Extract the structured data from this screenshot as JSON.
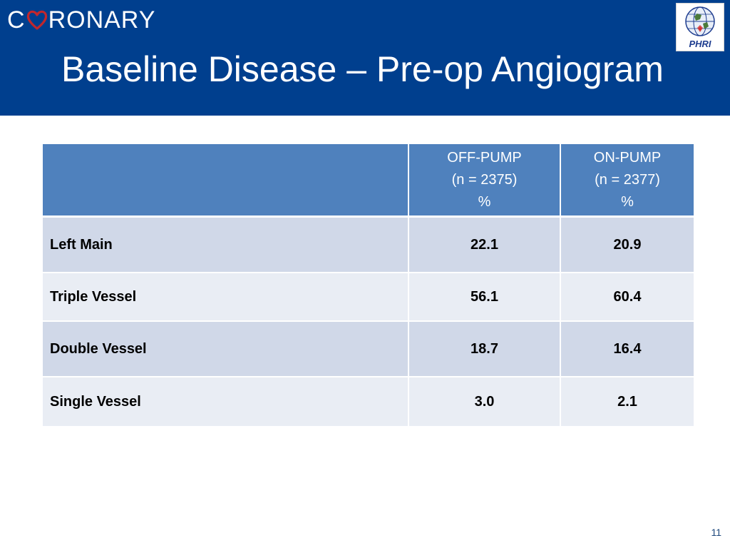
{
  "header": {
    "brand_left": "C",
    "brand_right": "RONARY",
    "title": "Baseline Disease – Pre-op Angiogram",
    "logo_text": "PHRI"
  },
  "table": {
    "columns": [
      {
        "label": ""
      },
      {
        "line1": "OFF-PUMP",
        "line2": "(n = 2375)",
        "line3": "%"
      },
      {
        "line1": "ON-PUMP",
        "line2": "(n = 2377)",
        "line3": "%"
      }
    ],
    "rows": [
      {
        "label": "Left Main",
        "off_pump": "22.1",
        "on_pump": "20.9"
      },
      {
        "label": "Triple Vessel",
        "off_pump": "56.1",
        "on_pump": "60.4"
      },
      {
        "label": "Double Vessel",
        "off_pump": "18.7",
        "on_pump": "16.4"
      },
      {
        "label": "Single Vessel",
        "off_pump": "3.0",
        "on_pump": "2.1"
      }
    ]
  },
  "footer": {
    "page_number": "11"
  },
  "colors": {
    "header_bg": "#003f8e",
    "table_header": "#4f81bd",
    "row_dark": "#d0d8e8",
    "row_light": "#e9edf4",
    "heart": "#c0272d"
  },
  "icons": {
    "brand_heart": "heart-icon",
    "logo_globe": "globe-icon"
  }
}
